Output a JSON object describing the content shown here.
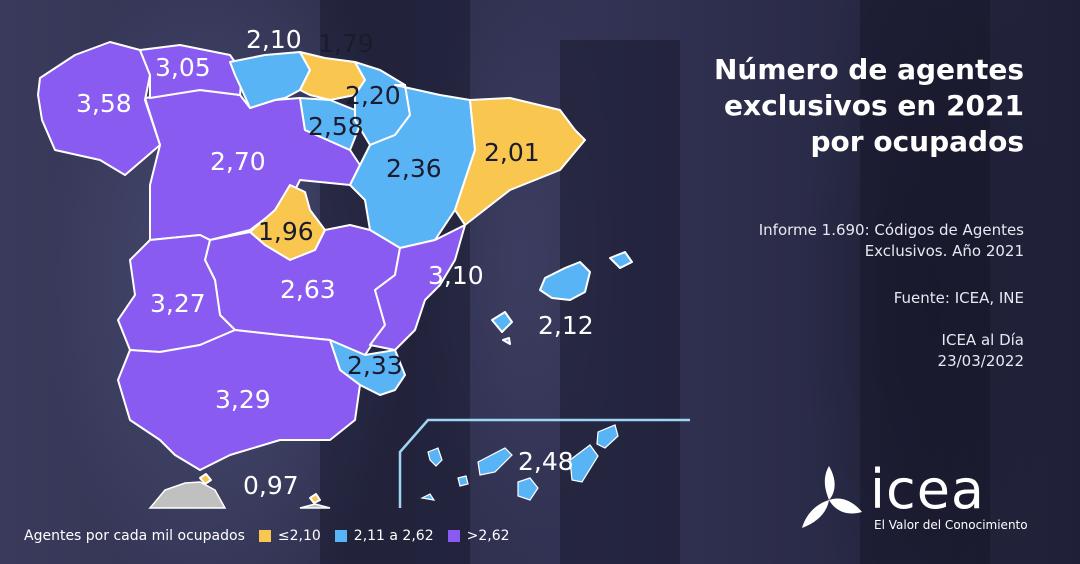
{
  "title": "Número de agentes exclusivos en 2021 por ocupados",
  "info": {
    "report": "Informe 1.690: Códigos de Agentes Exclusivos. Año 2021",
    "source": "Fuente: ICEA, INE",
    "publication": "ICEA al Día",
    "date": "23/03/2022"
  },
  "legend": {
    "title": "Agentes por cada mil ocupados",
    "items": [
      {
        "label": "≤2,10",
        "color": "#f9c74f"
      },
      {
        "label": "2,11 a 2,62",
        "color": "#59b4f5"
      },
      {
        "label": ">2,62",
        "color": "#8a5bf0"
      }
    ]
  },
  "regions": {
    "galicia": "3,58",
    "asturias": "3,05",
    "cantabria": "2,10",
    "pais_vasco": "1,79",
    "navarra": "2,20",
    "la_rioja": "2,58",
    "aragon": "2,36",
    "cataluna": "2,01",
    "castilla_leon": "2,70",
    "madrid": "1,96",
    "extremadura": "3,27",
    "castilla_la_mancha": "2,63",
    "valencia": "3,10",
    "baleares": "2,12",
    "murcia": "2,33",
    "andalucia": "3,29",
    "ceuta_melilla": "0,97",
    "canarias": "2,48"
  },
  "colors": {
    "low": "#f9c74f",
    "mid": "#59b4f5",
    "high": "#8a5bf0",
    "background": "#2b2c49",
    "africa": "#c0c0c0"
  },
  "logo": {
    "name": "icea",
    "tagline": "El Valor del Conocimiento"
  }
}
